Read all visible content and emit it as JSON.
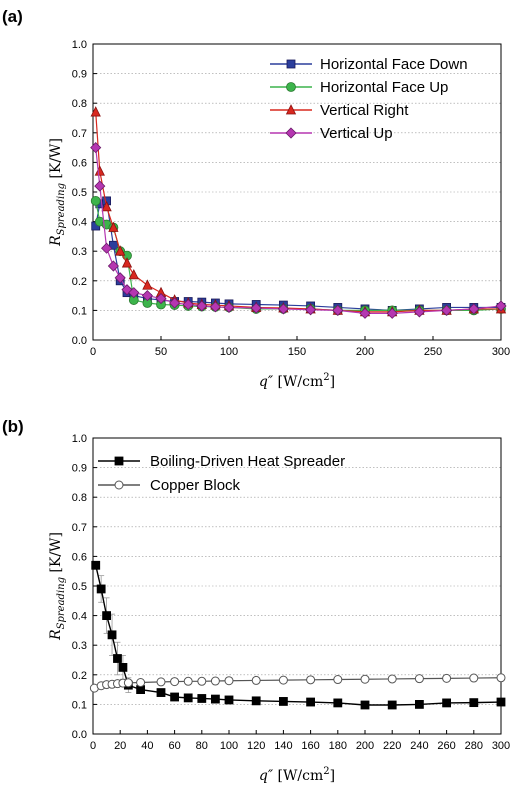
{
  "chart_data": [
    {
      "panel_label": "(a)",
      "type": "line",
      "xlabel": "q″ [W/cm²]",
      "xlabel_main": "q″",
      "xlabel_units_pre": " [W/cm",
      "xlabel_units_sup": "2",
      "xlabel_units_post": "]",
      "ylabel": "R_Spreading [K/W]",
      "ylabel_main": "R",
      "ylabel_sub": "Spreading",
      "ylabel_units": " [K/W]",
      "xlim": [
        0,
        300
      ],
      "ylim": [
        0,
        1.0
      ],
      "xticks": [
        "0",
        "50",
        "100",
        "150",
        "200",
        "250",
        "300"
      ],
      "yticks": [
        "0.0",
        "0.1",
        "0.2",
        "0.3",
        "0.4",
        "0.5",
        "0.6",
        "0.7",
        "0.8",
        "0.9",
        "1.0"
      ],
      "grid": "horizontal dotted",
      "legend_position": "top-right",
      "series": [
        {
          "name": "Horizontal Face Down",
          "color": "#2b3e9c",
          "marker": "square",
          "x": [
            2,
            5,
            10,
            15,
            20,
            25,
            30,
            40,
            50,
            60,
            70,
            80,
            90,
            100,
            120,
            140,
            160,
            180,
            200,
            220,
            240,
            260,
            280,
            300
          ],
          "y": [
            0.385,
            0.46,
            0.47,
            0.32,
            0.2,
            0.16,
            0.15,
            0.14,
            0.135,
            0.13,
            0.13,
            0.128,
            0.125,
            0.122,
            0.12,
            0.118,
            0.115,
            0.11,
            0.105,
            0.1,
            0.105,
            0.11,
            0.11,
            0.11
          ]
        },
        {
          "name": "Horizontal Face Up",
          "color": "#3cb44b",
          "marker": "circle",
          "x": [
            2,
            5,
            10,
            15,
            20,
            25,
            30,
            40,
            50,
            60,
            70,
            80,
            90,
            100,
            120,
            140,
            160,
            180,
            200,
            220,
            240,
            260,
            280,
            300
          ],
          "y": [
            0.47,
            0.4,
            0.39,
            0.38,
            0.3,
            0.285,
            0.135,
            0.125,
            0.12,
            0.118,
            0.115,
            0.113,
            0.112,
            0.11,
            0.105,
            0.105,
            0.105,
            0.1,
            0.1,
            0.1,
            0.1,
            0.1,
            0.1,
            0.105
          ]
        },
        {
          "name": "Vertical Right",
          "color": "#d8281f",
          "marker": "triangle",
          "x": [
            2,
            5,
            10,
            15,
            20,
            25,
            30,
            40,
            50,
            60,
            70,
            80,
            90,
            100,
            120,
            140,
            160,
            180,
            200,
            220,
            240,
            260,
            280,
            300
          ],
          "y": [
            0.77,
            0.57,
            0.45,
            0.38,
            0.3,
            0.26,
            0.22,
            0.185,
            0.16,
            0.135,
            0.125,
            0.12,
            0.118,
            0.115,
            0.11,
            0.108,
            0.105,
            0.1,
            0.095,
            0.095,
            0.1,
            0.1,
            0.105,
            0.105
          ]
        },
        {
          "name": "Vertical Up",
          "color": "#b537b1",
          "marker": "diamond",
          "x": [
            2,
            5,
            10,
            15,
            20,
            25,
            30,
            40,
            50,
            60,
            70,
            80,
            90,
            100,
            120,
            140,
            160,
            180,
            200,
            220,
            240,
            260,
            280,
            300
          ],
          "y": [
            0.65,
            0.52,
            0.31,
            0.25,
            0.21,
            0.17,
            0.16,
            0.15,
            0.14,
            0.125,
            0.12,
            0.115,
            0.112,
            0.11,
            0.108,
            0.105,
            0.102,
            0.1,
            0.09,
            0.09,
            0.095,
            0.1,
            0.105,
            0.115
          ]
        }
      ]
    },
    {
      "panel_label": "(b)",
      "type": "line",
      "xlabel": "q″ [W/cm²]",
      "xlabel_main": "q″",
      "xlabel_units_pre": " [W/cm",
      "xlabel_units_sup": "2",
      "xlabel_units_post": "]",
      "ylabel": "R_Spreading [K/W]",
      "ylabel_main": "R",
      "ylabel_sub": "Spreading",
      "ylabel_units": " [K/W]",
      "xlim": [
        0,
        300
      ],
      "ylim": [
        0,
        1.0
      ],
      "xticks": [
        "0",
        "20",
        "40",
        "60",
        "80",
        "100",
        "120",
        "140",
        "160",
        "180",
        "200",
        "220",
        "240",
        "260",
        "280",
        "300"
      ],
      "yticks": [
        "0.0",
        "0.1",
        "0.2",
        "0.3",
        "0.4",
        "0.5",
        "0.6",
        "0.7",
        "0.8",
        "0.9",
        "1.0"
      ],
      "grid": "horizontal dotted",
      "legend_position": "top-left",
      "series": [
        {
          "name": "Boiling-Driven Heat Spreader",
          "color": "#000000",
          "marker": "square-filled",
          "x": [
            2,
            6,
            10,
            14,
            18,
            22,
            26,
            35,
            50,
            60,
            70,
            80,
            90,
            100,
            120,
            140,
            160,
            180,
            200,
            220,
            240,
            260,
            280,
            300
          ],
          "y": [
            0.57,
            0.49,
            0.4,
            0.335,
            0.255,
            0.225,
            0.165,
            0.15,
            0.14,
            0.125,
            0.122,
            0.12,
            0.118,
            0.115,
            0.112,
            0.11,
            0.108,
            0.105,
            0.098,
            0.098,
            0.1,
            0.105,
            0.106,
            0.108
          ],
          "error": [
            0,
            0.045,
            0.06,
            0.07,
            0.055,
            0.04,
            0.025,
            0.01,
            0.008,
            0.006,
            0.005,
            0.005,
            0.005,
            0.005,
            0.004,
            0.004,
            0.004,
            0.004,
            0.004,
            0.004,
            0.004,
            0.004,
            0.004,
            0.004
          ]
        },
        {
          "name": "Copper Block",
          "color": "#555555",
          "marker": "circle-open",
          "x": [
            1,
            6,
            10,
            14,
            18,
            22,
            26,
            35,
            50,
            60,
            70,
            80,
            90,
            100,
            120,
            140,
            160,
            180,
            200,
            220,
            240,
            260,
            280,
            300
          ],
          "y": [
            0.155,
            0.163,
            0.167,
            0.168,
            0.17,
            0.172,
            0.173,
            0.174,
            0.176,
            0.177,
            0.178,
            0.178,
            0.179,
            0.18,
            0.181,
            0.182,
            0.183,
            0.184,
            0.185,
            0.186,
            0.187,
            0.188,
            0.189,
            0.19
          ],
          "error": [
            0,
            0.01,
            0.01,
            0.01,
            0.01,
            0.008,
            0.006,
            0.005,
            0.004,
            0.004,
            0.004,
            0.004,
            0.004,
            0.004,
            0.004,
            0.004,
            0.004,
            0.004,
            0.004,
            0.004,
            0.004,
            0.004,
            0.004,
            0.004
          ]
        }
      ]
    }
  ]
}
